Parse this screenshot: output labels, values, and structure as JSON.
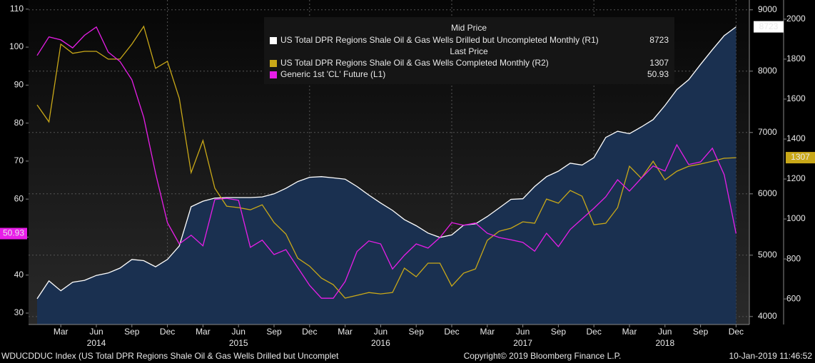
{
  "chart_data": {
    "type": "line",
    "legend_headers": [
      "Mid Price",
      "Last Price"
    ],
    "categories": [
      null,
      null,
      "Mar",
      null,
      null,
      "Jun",
      null,
      null,
      "Sep",
      null,
      null,
      "Dec",
      null,
      null,
      "Mar",
      null,
      null,
      "Jun",
      null,
      null,
      "Sep",
      null,
      null,
      "Dec",
      null,
      null,
      "Mar",
      null,
      null,
      "Jun",
      null,
      null,
      "Sep",
      null,
      null,
      "Dec",
      null,
      null,
      "Mar",
      null,
      null,
      "Jun",
      null,
      null,
      "Sep",
      null,
      null,
      "Dec",
      null,
      null,
      "Mar",
      null,
      null,
      "Jun",
      null,
      null,
      "Sep",
      null,
      null,
      "Dec"
    ],
    "years": [
      "2014",
      "2015",
      "2016",
      "2017",
      "2018"
    ],
    "series": [
      {
        "name": "US Total DPR Regions Shale Oil & Gas Wells Drilled but Uncompleted Monthly  (R1)",
        "color": "#ffffff",
        "fill": "#1a3050",
        "axis": "y2",
        "values": [
          4290,
          4580,
          4420,
          4560,
          4590,
          4670,
          4710,
          4790,
          4930,
          4910,
          4810,
          4930,
          5150,
          5790,
          5880,
          5930,
          5940,
          5940,
          5940,
          5950,
          6000,
          6090,
          6200,
          6270,
          6280,
          6260,
          6240,
          6120,
          5980,
          5850,
          5730,
          5580,
          5480,
          5360,
          5290,
          5330,
          5490,
          5510,
          5630,
          5770,
          5910,
          5920,
          6120,
          6280,
          6370,
          6500,
          6470,
          6590,
          6920,
          7020,
          6980,
          7090,
          7210,
          7440,
          7700,
          7860,
          8110,
          8350,
          8580,
          8723
        ]
      },
      {
        "name": "US Total DPR Regions Shale Oil & Gas Wells Completed Monthly  (R2)",
        "color": "#c9a818",
        "axis": "y3",
        "values": [
          1571,
          1486,
          1875,
          1829,
          1839,
          1839,
          1800,
          1800,
          1875,
          1964,
          1754,
          1789,
          1604,
          1232,
          1393,
          1154,
          1064,
          1057,
          1046,
          1071,
          982,
          925,
          804,
          764,
          704,
          671,
          604,
          618,
          632,
          625,
          632,
          754,
          711,
          779,
          779,
          664,
          729,
          750,
          893,
          939,
          954,
          986,
          979,
          1100,
          1079,
          1143,
          1114,
          971,
          979,
          1057,
          1264,
          1204,
          1289,
          1196,
          1239,
          1264,
          1275,
          1289,
          1304,
          1307
        ]
      },
      {
        "name": "Generic 1st 'CL' Future  (L1)",
        "color": "#e81ee8",
        "axis": "y",
        "values": [
          97.8,
          102.7,
          101.9,
          99.8,
          103.1,
          105.3,
          98.7,
          96.2,
          91.4,
          81.5,
          66.8,
          53.8,
          48.2,
          50.5,
          47.7,
          59.9,
          60.2,
          59.7,
          47.3,
          49.2,
          45.4,
          46.7,
          42.0,
          37.3,
          33.9,
          33.9,
          38.3,
          46.2,
          49.0,
          48.2,
          41.6,
          45.2,
          48.2,
          47.1,
          49.9,
          53.8,
          53.1,
          53.7,
          51.0,
          49.9,
          49.3,
          48.6,
          46.3,
          51.0,
          47.5,
          52.0,
          54.8,
          57.6,
          60.6,
          65.1,
          62.1,
          65.5,
          68.7,
          67.4,
          74.3,
          69.1,
          69.8,
          73.4,
          66.4,
          50.93
        ]
      }
    ],
    "ylim": [
      27,
      112.4
    ],
    "yticks": [
      30,
      40,
      50,
      60,
      70,
      80,
      90,
      100,
      110
    ],
    "y2lim": [
      3870,
      9160
    ],
    "y2ticks": [
      4000,
      5000,
      6000,
      7000,
      8000,
      9000
    ],
    "y3lim": [
      472,
      2096
    ],
    "y3ticks": [
      600,
      800,
      1000,
      1200,
      1400,
      1600,
      1800,
      2000
    ],
    "grid": true,
    "footer": {
      "left": "WDUCDDUC Index (US Total DPR Regions Shale Oil & Gas Wells Drilled but Uncomplet",
      "center": "Copyright© 2019 Bloomberg Finance L.P.",
      "right": "10-Jan-2019 11:46:52"
    }
  }
}
